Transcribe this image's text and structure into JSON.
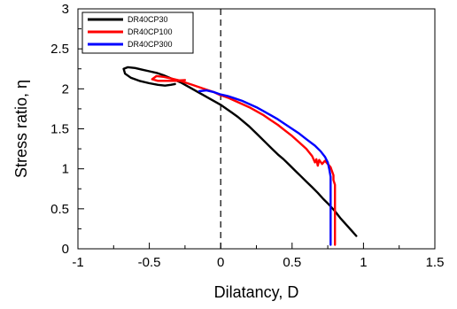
{
  "chart_data": {
    "type": "line",
    "title": "",
    "xlabel": "Dilatancy, D",
    "ylabel": "Stress ratio, η",
    "xlim": [
      -1,
      1.5
    ],
    "ylim": [
      0,
      3
    ],
    "xticks": [
      "-1",
      "-0.5",
      "0",
      "0.5",
      "1",
      "1.5"
    ],
    "yticks": [
      "0",
      "0.5",
      "1",
      "1.5",
      "2",
      "2.5",
      "3"
    ],
    "reference_line": {
      "x": 0,
      "style": "dashed"
    },
    "grid": false,
    "legend_position": "top-left",
    "series": [
      {
        "name": "DR40CP30",
        "color": "#000000",
        "x": [
          0.95,
          0.92,
          0.88,
          0.84,
          0.8,
          0.76,
          0.72,
          0.68,
          0.64,
          0.6,
          0.56,
          0.52,
          0.48,
          0.44,
          0.4,
          0.36,
          0.32,
          0.28,
          0.24,
          0.2,
          0.16,
          0.12,
          0.08,
          0.04,
          0.0,
          -0.04,
          -0.08,
          -0.12,
          -0.16,
          -0.2,
          -0.24,
          -0.28,
          -0.32,
          -0.36,
          -0.4,
          -0.45,
          -0.5,
          -0.55,
          -0.6,
          -0.65,
          -0.68,
          -0.67,
          -0.63,
          -0.57,
          -0.5,
          -0.44,
          -0.39,
          -0.35,
          -0.32
        ],
        "y": [
          0.16,
          0.22,
          0.3,
          0.38,
          0.47,
          0.55,
          0.62,
          0.7,
          0.77,
          0.84,
          0.91,
          0.98,
          1.05,
          1.12,
          1.18,
          1.25,
          1.32,
          1.39,
          1.46,
          1.53,
          1.59,
          1.65,
          1.7,
          1.75,
          1.8,
          1.84,
          1.88,
          1.92,
          1.96,
          2.0,
          2.04,
          2.08,
          2.11,
          2.14,
          2.17,
          2.2,
          2.22,
          2.24,
          2.26,
          2.27,
          2.25,
          2.19,
          2.14,
          2.1,
          2.07,
          2.05,
          2.04,
          2.05,
          2.06
        ]
      },
      {
        "name": "DR40CP100",
        "color": "#ff0000",
        "x": [
          0.8,
          0.8,
          0.8,
          0.8,
          0.8,
          0.79,
          0.79,
          0.78,
          0.77,
          0.75,
          0.73,
          0.71,
          0.69,
          0.68,
          0.67,
          0.66,
          0.64,
          0.6,
          0.55,
          0.5,
          0.45,
          0.4,
          0.35,
          0.3,
          0.25,
          0.2,
          0.15,
          0.1,
          0.05,
          0.0,
          -0.05,
          -0.1,
          -0.15,
          -0.2,
          -0.25,
          -0.3,
          -0.35,
          -0.4,
          -0.45,
          -0.48,
          -0.44,
          -0.35,
          -0.25
        ],
        "y": [
          0.05,
          0.2,
          0.4,
          0.6,
          0.8,
          0.86,
          0.92,
          0.97,
          1.02,
          1.06,
          1.1,
          1.06,
          1.11,
          1.04,
          1.12,
          1.08,
          1.16,
          1.25,
          1.33,
          1.41,
          1.48,
          1.55,
          1.61,
          1.67,
          1.72,
          1.77,
          1.81,
          1.85,
          1.89,
          1.92,
          1.96,
          1.99,
          2.02,
          2.05,
          2.08,
          2.11,
          2.13,
          2.15,
          2.16,
          2.12,
          2.1,
          2.1,
          2.11
        ]
      },
      {
        "name": "DR40CP300",
        "color": "#0000ff",
        "x": [
          0.77,
          0.77,
          0.77,
          0.77,
          0.77,
          0.77,
          0.76,
          0.75,
          0.73,
          0.7,
          0.66,
          0.6,
          0.55,
          0.5,
          0.45,
          0.4,
          0.35,
          0.3,
          0.25,
          0.2,
          0.15,
          0.1,
          0.05,
          0.0,
          -0.05,
          -0.1,
          -0.15
        ],
        "y": [
          0.05,
          0.2,
          0.4,
          0.6,
          0.8,
          0.9,
          1.0,
          1.08,
          1.15,
          1.22,
          1.29,
          1.37,
          1.44,
          1.5,
          1.56,
          1.62,
          1.67,
          1.72,
          1.77,
          1.81,
          1.85,
          1.88,
          1.91,
          1.93,
          1.96,
          1.98,
          1.97
        ]
      }
    ]
  }
}
